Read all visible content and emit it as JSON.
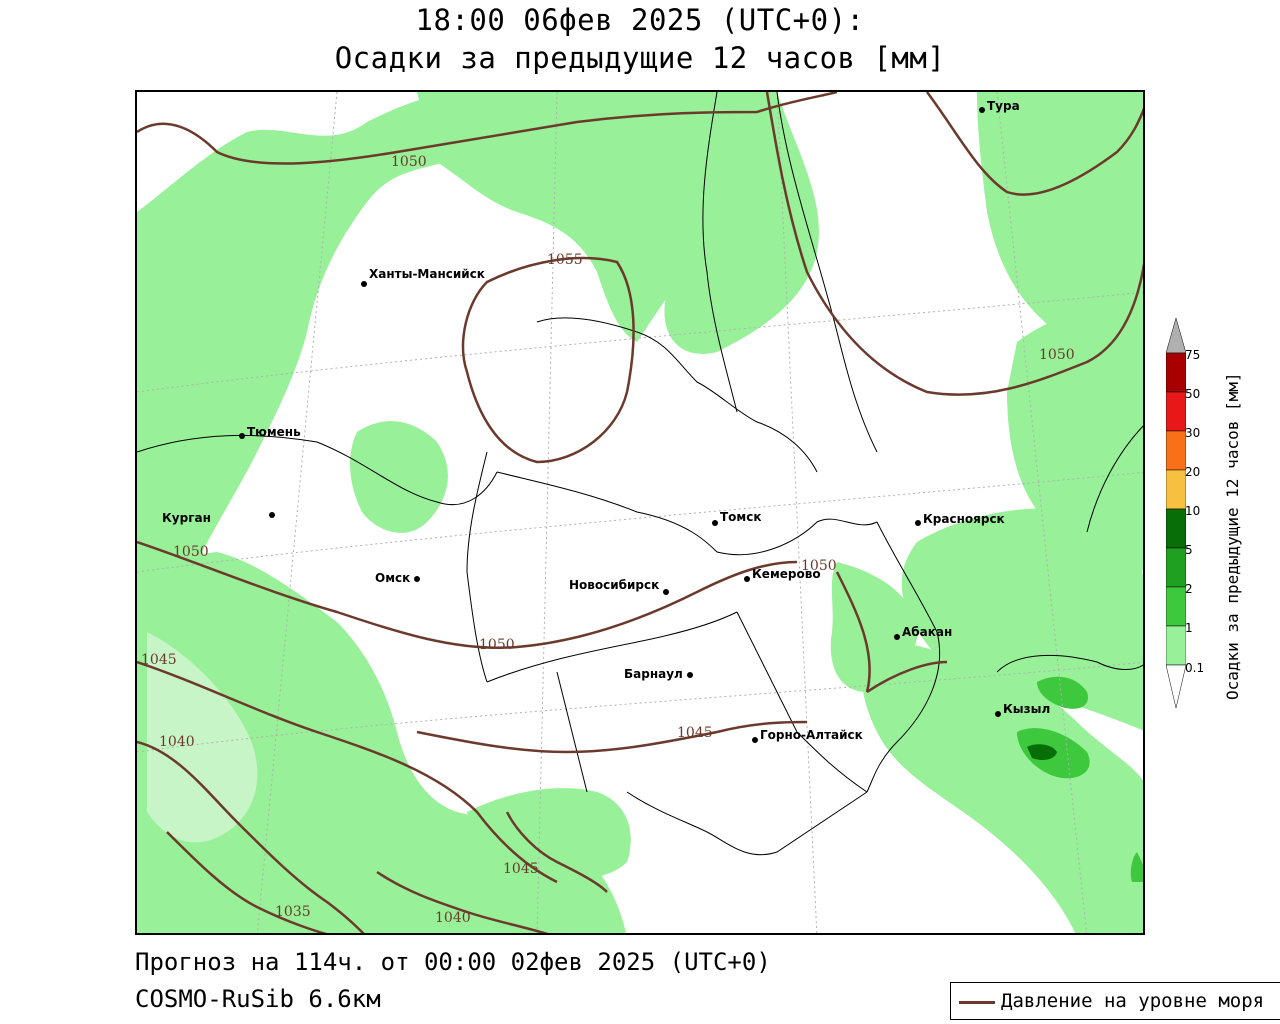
{
  "title": {
    "line1": "18:00 06фев 2025 (UTC+0):",
    "line2": "Осадки за предыдущие 12 часов [мм]"
  },
  "footer": {
    "forecast": "Прогноз на 114ч. от 00:00 02фев 2025 (UTC+0)",
    "model": "COSMO-RuSib 6.6км"
  },
  "legend": {
    "pressure_label": "Давление на уровне моря",
    "pressure_color": "#6b3a2c"
  },
  "colorbar": {
    "title": "Осадки за предыдущие 12 часов [мм]",
    "ticks": [
      "0.1",
      "1",
      "2",
      "5",
      "10",
      "20",
      "30",
      "50",
      "75"
    ],
    "colors": [
      "#c8f5c8",
      "#98f098",
      "#3ec83e",
      "#20a020",
      "#086e08",
      "#f8c040",
      "#f87018",
      "#e81818",
      "#a80000",
      "#b0b0b0"
    ]
  },
  "cities": [
    {
      "name": "Тура"
    },
    {
      "name": "Ханты-Мансийск"
    },
    {
      "name": "Тюмень"
    },
    {
      "name": "Курган"
    },
    {
      "name": "Омск"
    },
    {
      "name": "Новосибирск"
    },
    {
      "name": "Томск"
    },
    {
      "name": "Кемерово"
    },
    {
      "name": "Красноярск"
    },
    {
      "name": "Абакан"
    },
    {
      "name": "Барнаул"
    },
    {
      "name": "Горно-Алтайск"
    },
    {
      "name": "Кызыл"
    }
  ],
  "isobars": [
    "1050",
    "1055",
    "1050",
    "1050",
    "1050",
    "1050",
    "1045",
    "1040",
    "1045",
    "1045",
    "1035",
    "1040"
  ]
}
